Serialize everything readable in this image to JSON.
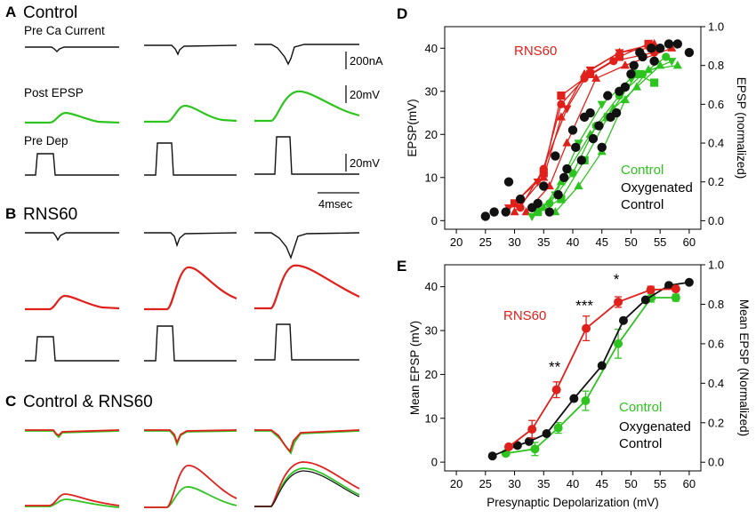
{
  "figure": {
    "panel_A": {
      "letter": "A",
      "title": "Control",
      "row_labels": [
        "Pre Ca Current",
        "Post EPSP",
        "Pre Dep"
      ],
      "scalebars": [
        "200nA",
        "20mV",
        "20mV"
      ],
      "time_scale": "4msec"
    },
    "panel_B": {
      "letter": "B",
      "title": "RNS60"
    },
    "panel_C": {
      "letter": "C",
      "title": "Control & RNS60"
    },
    "colors": {
      "control": "#2ec41f",
      "rns60": "#e0201a",
      "oxygenated": "#111111"
    }
  },
  "chart_data": [
    {
      "panel": "D",
      "type": "scatter",
      "ylabel": "EPSP(mV)",
      "y2label": "EPSP (normalized)",
      "xlim": [
        18,
        62
      ],
      "ylim": [
        -2,
        45
      ],
      "y2lim": [
        -0.044,
        1.0
      ],
      "xticks": [
        "20",
        "25",
        "30",
        "35",
        "40",
        "45",
        "50",
        "55",
        "60"
      ],
      "yticks": [
        "0",
        "10",
        "20",
        "30",
        "40"
      ],
      "y2ticks": [
        "0.0",
        "0.2",
        "0.4",
        "0.6",
        "0.8",
        "1.0"
      ],
      "annotations": {
        "rns60": "RNS60",
        "control": "Control",
        "oxygenated_line1": "Oxygenated",
        "oxygenated_line2": "Control"
      },
      "series": [
        {
          "name": "RNS60",
          "color": "#e0201a",
          "markers": [
            "tri-down",
            "square",
            "tri-up",
            "circle",
            "tri-up"
          ],
          "lines": [
            {
              "x": [
                29,
                34,
                39,
                43,
                48,
                53
              ],
              "y": [
                3,
                9,
                26,
                35,
                39,
                40
              ]
            },
            {
              "x": [
                30,
                35,
                38,
                43,
                48,
                53
              ],
              "y": [
                4,
                11,
                29,
                34,
                38,
                41
              ]
            },
            {
              "x": [
                30,
                35,
                38,
                42,
                48,
                54
              ],
              "y": [
                2,
                10,
                24,
                34,
                39,
                41
              ]
            },
            {
              "x": [
                31,
                35,
                38,
                42,
                47,
                54
              ],
              "y": [
                3,
                12,
                27,
                33,
                37,
                39
              ]
            },
            {
              "x": [
                32,
                36,
                39,
                44,
                49,
                57
              ],
              "y": [
                2,
                8,
                18,
                33,
                36,
                40
              ]
            }
          ]
        },
        {
          "name": "Control",
          "color": "#2ec41f",
          "markers": [
            "tri-down",
            "square",
            "tri-up",
            "circle",
            "tri-up"
          ],
          "lines": [
            {
              "x": [
                33,
                37,
                41,
                45,
                50,
                57
              ],
              "y": [
                1,
                6,
                18,
                27,
                33,
                37
              ]
            },
            {
              "x": [
                34,
                38,
                42,
                46,
                51,
                54
              ],
              "y": [
                2,
                5,
                14,
                24,
                34,
                32
              ]
            },
            {
              "x": [
                35,
                38,
                43,
                47,
                51,
                55
              ],
              "y": [
                3,
                9,
                20,
                26,
                31,
                36
              ]
            },
            {
              "x": [
                36,
                40,
                44,
                48,
                52,
                56
              ],
              "y": [
                4,
                11,
                22,
                29,
                34,
                38
              ]
            },
            {
              "x": [
                37,
                41,
                45,
                49,
                53,
                58
              ],
              "y": [
                2,
                8,
                16,
                28,
                35,
                36
              ]
            }
          ]
        },
        {
          "name": "Oxygenated Control",
          "color": "#111111",
          "markers": [
            "circle"
          ],
          "lines": [
            {
              "x": [
                25,
                28.5,
                31,
                33,
                35,
                37,
                38.5,
                40,
                41.5,
                43,
                44.5,
                46,
                47.5,
                49,
                50.5,
                52,
                53.5,
                55,
                56.5,
                58,
                60
              ],
              "y": [
                1,
                2,
                5,
                3,
                8,
                15,
                10,
                21,
                14,
                25,
                22,
                29,
                25,
                31,
                36,
                38,
                40,
                40,
                41,
                41,
                39
              ]
            },
            {
              "x": [
                26.5,
                29,
                34,
                36,
                37.5,
                39,
                40.5,
                42,
                43.5,
                45,
                46.5,
                48,
                50,
                51.5,
                54
              ],
              "y": [
                2,
                9,
                4,
                2,
                6,
                12,
                17,
                24,
                19,
                17,
                24,
                30,
                34,
                39,
                37
              ]
            }
          ]
        }
      ]
    },
    {
      "panel": "E",
      "type": "line",
      "xlabel": "Presynaptic Depolarization (mV)",
      "ylabel": "Mean EPSP (mV)",
      "y2label": "Mean EPSP (Normalized)",
      "xlim": [
        18,
        62
      ],
      "ylim": [
        -2,
        45
      ],
      "y2lim": [
        -0.044,
        1.0
      ],
      "xticks": [
        "20",
        "25",
        "30",
        "35",
        "40",
        "45",
        "50",
        "55",
        "60"
      ],
      "yticks": [
        "0",
        "10",
        "20",
        "30",
        "40"
      ],
      "y2ticks": [
        "0.0",
        "0.2",
        "0.4",
        "0.6",
        "0.8",
        "1.0"
      ],
      "annotations": {
        "rns60": "RNS60",
        "control": "Control",
        "oxygenated_line1": "Oxygenated",
        "oxygenated_line2": "Control"
      },
      "significance": [
        {
          "x": 37.2,
          "y": 16.5,
          "label": "**"
        },
        {
          "x": 42.3,
          "y": 30.5,
          "label": "***"
        },
        {
          "x": 47.8,
          "y": 36.5,
          "label": "*"
        }
      ],
      "series": [
        {
          "name": "Oxygenated Control",
          "color": "#111111",
          "x": [
            26.2,
            30.5,
            32.5,
            35.5,
            40.2,
            45,
            48.7,
            52.5,
            56.5,
            60
          ],
          "y": [
            1.4,
            3.8,
            4.7,
            6.5,
            14.5,
            22,
            32.3,
            37,
            40.3,
            41
          ]
        },
        {
          "name": "RNS60",
          "color": "#e0201a",
          "x": [
            29,
            33,
            37.2,
            42.3,
            47.8,
            53.4,
            57.7
          ],
          "y": [
            3.5,
            7.5,
            16.5,
            30.5,
            36.5,
            39.3,
            39.5
          ],
          "err": [
            0.5,
            2.0,
            1.8,
            2.8,
            1.2,
            0.8,
            0.5
          ]
        },
        {
          "name": "Control",
          "color": "#2ec41f",
          "x": [
            28.5,
            33.5,
            37.5,
            42.2,
            47.8,
            53.5,
            57.7
          ],
          "y": [
            2.0,
            3.0,
            7.8,
            14.0,
            27.0,
            37.5,
            37.5
          ],
          "err": [
            0.5,
            1.5,
            1.2,
            2.2,
            3.3,
            1.0,
            0.8
          ]
        }
      ]
    }
  ]
}
